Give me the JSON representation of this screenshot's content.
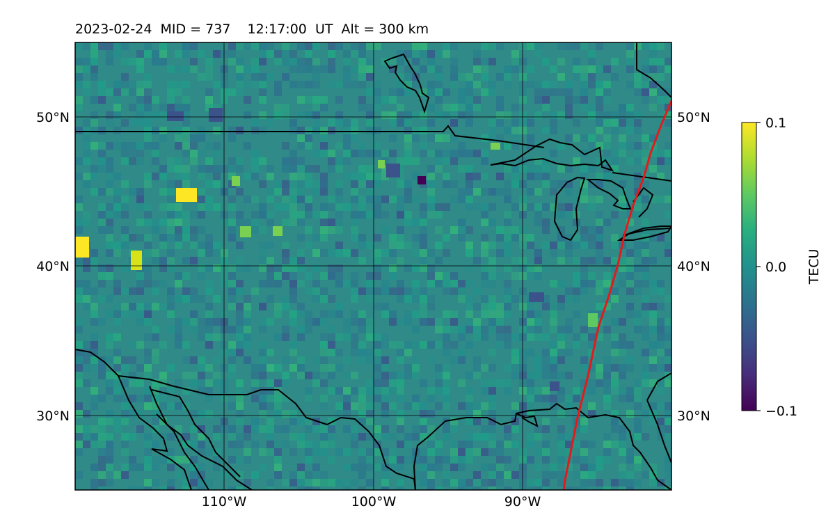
{
  "title": "2023-02-24  MID = 737    12:17:00  UT  Alt = 300 km",
  "map": {
    "lat_labels": [
      "50°N",
      "40°N",
      "30°N"
    ],
    "lon_labels": [
      "110°W",
      "100°W",
      "90°W"
    ],
    "lat_gridlines": [
      50,
      40,
      30
    ],
    "lon_gridlines": [
      -110,
      -100,
      -90
    ],
    "extent": {
      "lon_min": -120,
      "lon_max": -80,
      "lat_min": 25,
      "lat_max": 55
    },
    "terminator_color": "#e31a1c",
    "coastline_color": "#000000"
  },
  "colorbar": {
    "label": "TECU",
    "ticks": [
      "0.1",
      "0.0",
      "−0.1"
    ],
    "vmin": -0.1,
    "vmax": 0.1,
    "colormap": "viridis"
  }
}
